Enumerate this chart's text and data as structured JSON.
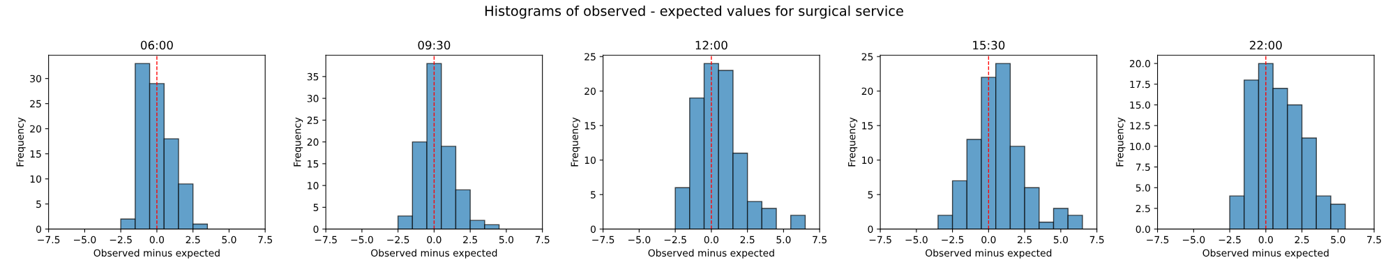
{
  "chart_data": [
    {
      "type": "histogram",
      "title": "06:00",
      "annotations": [
        "Histograms of observed - expected values for surgical service"
      ],
      "xlabel": "Observed minus expected",
      "ylabel": "Frequency",
      "color": "#62a0ca",
      "bins": [
        -2.5,
        -1.5,
        -0.5,
        0.5,
        1.5,
        2.5,
        3.5
      ],
      "values": [
        2,
        33,
        29,
        18,
        9,
        1
      ],
      "xlim": [
        -7.5,
        7.5
      ],
      "xticks": [
        {
          "value": -7.5,
          "label": "−7.5"
        },
        {
          "value": -5,
          "label": "−5.0"
        },
        {
          "value": -2.5,
          "label": "−2.5"
        },
        {
          "value": 0,
          "label": "0.0"
        },
        {
          "value": 2.5,
          "label": "2.5"
        },
        {
          "value": 5,
          "label": "5.0"
        },
        {
          "value": 7.5,
          "label": "7.5"
        }
      ],
      "ylim": [
        0,
        34.65
      ],
      "yticks": [
        0,
        5,
        10,
        15,
        20,
        25,
        30
      ],
      "ref_lines": [
        {
          "axis": "x",
          "value": 0,
          "color": "#ff0000",
          "line_style": "dashed"
        }
      ]
    },
    {
      "type": "histogram",
      "title": "09:30",
      "xlabel": "Observed minus expected",
      "ylabel": "Frequency",
      "color": "#62a0ca",
      "bins": [
        -2.5,
        -1.5,
        -0.5,
        0.5,
        1.5,
        2.5,
        3.5,
        4.5
      ],
      "values": [
        3,
        20,
        38,
        19,
        9,
        2,
        1
      ],
      "xlim": [
        -7.5,
        7.5
      ],
      "xticks": [
        {
          "value": -7.5,
          "label": "−7.5"
        },
        {
          "value": -5,
          "label": "−5.0"
        },
        {
          "value": -2.5,
          "label": "−2.5"
        },
        {
          "value": 0,
          "label": "0.0"
        },
        {
          "value": 2.5,
          "label": "2.5"
        },
        {
          "value": 5,
          "label": "5.0"
        },
        {
          "value": 7.5,
          "label": "7.5"
        }
      ],
      "ylim": [
        0,
        39.9
      ],
      "yticks": [
        0,
        5,
        10,
        15,
        20,
        25,
        30,
        35
      ],
      "ref_lines": [
        {
          "axis": "x",
          "value": 0,
          "color": "#ff0000",
          "line_style": "dashed"
        }
      ]
    },
    {
      "type": "histogram",
      "title": "12:00",
      "xlabel": "Observed minus expected",
      "ylabel": "Frequency",
      "color": "#62a0ca",
      "bins": [
        -2.5,
        -1.5,
        -0.5,
        0.5,
        1.5,
        2.5,
        3.5,
        4.5,
        5.5,
        6.5
      ],
      "values": [
        6,
        19,
        24,
        23,
        11,
        4,
        3,
        0,
        2
      ],
      "xlim": [
        -7.5,
        7.5
      ],
      "xticks": [
        {
          "value": -7.5,
          "label": "−7.5"
        },
        {
          "value": -5,
          "label": "−5.0"
        },
        {
          "value": -2.5,
          "label": "−2.5"
        },
        {
          "value": 0,
          "label": "0.0"
        },
        {
          "value": 2.5,
          "label": "2.5"
        },
        {
          "value": 5,
          "label": "5.0"
        },
        {
          "value": 7.5,
          "label": "7.5"
        }
      ],
      "ylim": [
        0,
        25.2
      ],
      "yticks": [
        0,
        5,
        10,
        15,
        20,
        25
      ],
      "ref_lines": [
        {
          "axis": "x",
          "value": 0,
          "color": "#ff0000",
          "line_style": "dashed"
        }
      ]
    },
    {
      "type": "histogram",
      "title": "15:30",
      "xlabel": "Observed minus expected",
      "ylabel": "Frequency",
      "color": "#62a0ca",
      "bins": [
        -3.5,
        -2.5,
        -1.5,
        -0.5,
        0.5,
        1.5,
        2.5,
        3.5,
        4.5,
        5.5,
        6.5
      ],
      "values": [
        2,
        7,
        13,
        22,
        24,
        12,
        6,
        1,
        3,
        2
      ],
      "xlim": [
        -7.5,
        7.5
      ],
      "xticks": [
        {
          "value": -7.5,
          "label": "−7.5"
        },
        {
          "value": -5,
          "label": "−5.0"
        },
        {
          "value": -2.5,
          "label": "−2.5"
        },
        {
          "value": 0,
          "label": "0.0"
        },
        {
          "value": 2.5,
          "label": "2.5"
        },
        {
          "value": 5,
          "label": "5.0"
        },
        {
          "value": 7.5,
          "label": "7.5"
        }
      ],
      "ylim": [
        0,
        25.2
      ],
      "yticks": [
        0,
        5,
        10,
        15,
        20,
        25
      ],
      "ref_lines": [
        {
          "axis": "x",
          "value": 0,
          "color": "#ff0000",
          "line_style": "dashed"
        }
      ]
    },
    {
      "type": "histogram",
      "title": "22:00",
      "xlabel": "Observed minus expected",
      "ylabel": "Frequency",
      "color": "#62a0ca",
      "bins": [
        -2.5,
        -1.5,
        -0.5,
        0.5,
        1.5,
        2.5,
        3.5,
        4.5,
        5.5
      ],
      "values": [
        4,
        18,
        20,
        17,
        15,
        11,
        4,
        3
      ],
      "xlim": [
        -7.5,
        7.5
      ],
      "xticks": [
        {
          "value": -7.5,
          "label": "−7.5"
        },
        {
          "value": -5,
          "label": "−5.0"
        },
        {
          "value": -2.5,
          "label": "−2.5"
        },
        {
          "value": 0,
          "label": "0.0"
        },
        {
          "value": 2.5,
          "label": "2.5"
        },
        {
          "value": 5,
          "label": "5.0"
        },
        {
          "value": 7.5,
          "label": "7.5"
        }
      ],
      "ylim": [
        0,
        21
      ],
      "yticks": [
        {
          "value": 0,
          "label": "0.0"
        },
        {
          "value": 2.5,
          "label": "2.5"
        },
        {
          "value": 5,
          "label": "5.0"
        },
        {
          "value": 7.5,
          "label": "7.5"
        },
        {
          "value": 10,
          "label": "10.0"
        },
        {
          "value": 12.5,
          "label": "12.5"
        },
        {
          "value": 15,
          "label": "15.0"
        },
        {
          "value": 17.5,
          "label": "17.5"
        },
        {
          "value": 20,
          "label": "20.0"
        }
      ],
      "ref_lines": [
        {
          "axis": "x",
          "value": 0,
          "color": "#ff0000",
          "line_style": "dashed"
        }
      ]
    }
  ]
}
